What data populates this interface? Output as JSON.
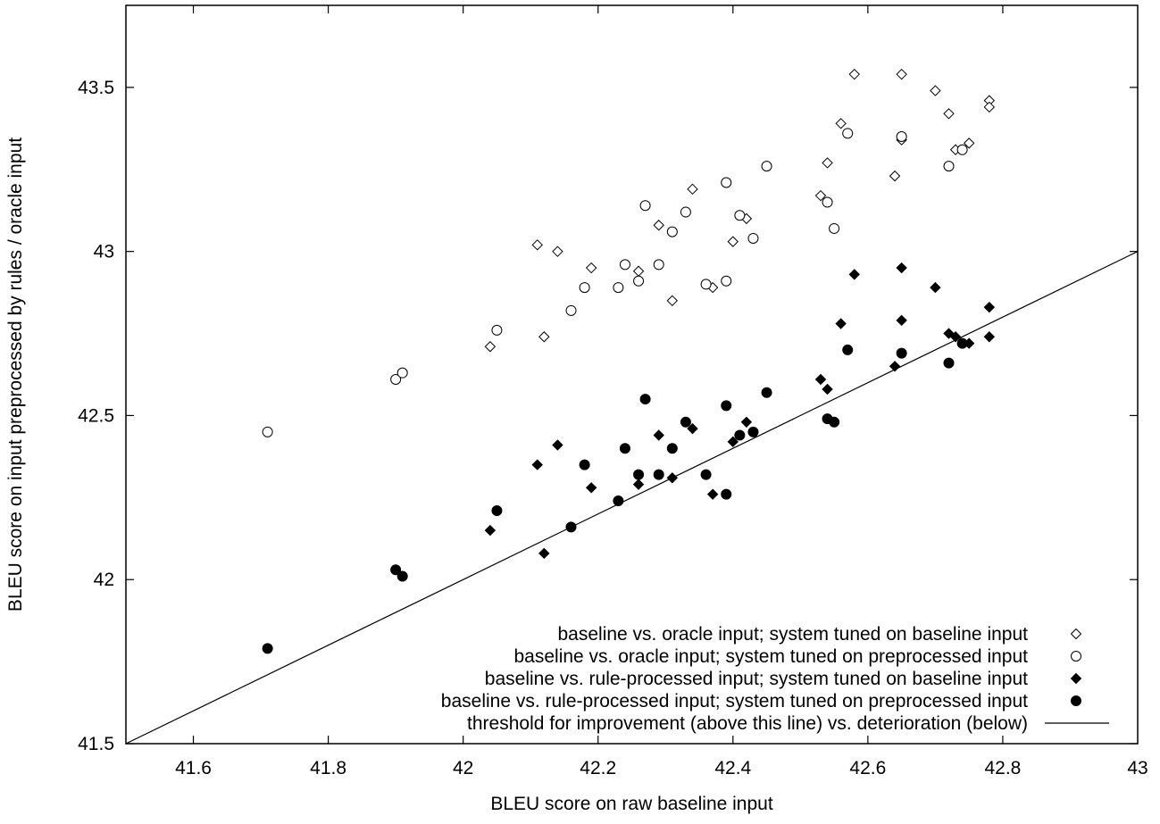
{
  "chart_data": {
    "type": "scatter",
    "title": "",
    "xlabel": "BLEU score on raw baseline input",
    "ylabel": "BLEU score on input preprocessed by rules / oracle input",
    "xlim": [
      41.5,
      43
    ],
    "ylim": [
      41.5,
      43.75
    ],
    "x_ticks": [
      41.6,
      41.8,
      42,
      42.2,
      42.4,
      42.6,
      42.8,
      43
    ],
    "y_ticks": [
      41.5,
      42,
      42.5,
      43,
      43.5
    ],
    "x_tick_labels": [
      "41.6",
      "41.8",
      "42",
      "42.2",
      "42.4",
      "42.6",
      "42.8",
      "43"
    ],
    "y_tick_labels": [
      "41.5",
      "42",
      "42.5",
      "43",
      "43.5"
    ],
    "grid": false,
    "legend_position": "bottom-right",
    "series": [
      {
        "name": "baseline vs. oracle input; system tuned on baseline input",
        "marker": "open-diamond",
        "points": [
          [
            42.04,
            42.71
          ],
          [
            42.11,
            43.02
          ],
          [
            42.12,
            42.74
          ],
          [
            42.14,
            43.0
          ],
          [
            42.19,
            42.95
          ],
          [
            42.26,
            42.94
          ],
          [
            42.29,
            43.08
          ],
          [
            42.31,
            42.85
          ],
          [
            42.34,
            43.19
          ],
          [
            42.37,
            42.89
          ],
          [
            42.4,
            43.03
          ],
          [
            42.42,
            43.1
          ],
          [
            42.53,
            43.17
          ],
          [
            42.54,
            43.27
          ],
          [
            42.56,
            43.39
          ],
          [
            42.58,
            43.54
          ],
          [
            42.64,
            43.23
          ],
          [
            42.65,
            43.54
          ],
          [
            42.65,
            43.34
          ],
          [
            42.7,
            43.49
          ],
          [
            42.72,
            43.42
          ],
          [
            42.73,
            43.31
          ],
          [
            42.75,
            43.33
          ],
          [
            42.78,
            43.46
          ],
          [
            42.78,
            43.44
          ]
        ]
      },
      {
        "name": "baseline vs. oracle input; system tuned on preprocessed input",
        "marker": "open-circle",
        "points": [
          [
            41.71,
            42.45
          ],
          [
            41.9,
            42.61
          ],
          [
            41.91,
            42.63
          ],
          [
            42.05,
            42.76
          ],
          [
            42.16,
            42.82
          ],
          [
            42.18,
            42.89
          ],
          [
            42.23,
            42.89
          ],
          [
            42.24,
            42.96
          ],
          [
            42.26,
            42.91
          ],
          [
            42.27,
            43.14
          ],
          [
            42.29,
            42.96
          ],
          [
            42.31,
            43.06
          ],
          [
            42.33,
            43.12
          ],
          [
            42.36,
            42.9
          ],
          [
            42.39,
            42.91
          ],
          [
            42.39,
            43.21
          ],
          [
            42.41,
            43.11
          ],
          [
            42.43,
            43.04
          ],
          [
            42.45,
            43.26
          ],
          [
            42.54,
            43.15
          ],
          [
            42.55,
            43.07
          ],
          [
            42.57,
            43.36
          ],
          [
            42.65,
            43.35
          ],
          [
            42.72,
            43.26
          ],
          [
            42.74,
            43.31
          ]
        ]
      },
      {
        "name": "baseline vs. rule-processed input; system tuned on baseline input",
        "marker": "filled-diamond",
        "points": [
          [
            42.04,
            42.15
          ],
          [
            42.11,
            42.35
          ],
          [
            42.12,
            42.08
          ],
          [
            42.14,
            42.41
          ],
          [
            42.19,
            42.28
          ],
          [
            42.26,
            42.29
          ],
          [
            42.29,
            42.44
          ],
          [
            42.31,
            42.31
          ],
          [
            42.34,
            42.46
          ],
          [
            42.37,
            42.26
          ],
          [
            42.4,
            42.42
          ],
          [
            42.42,
            42.48
          ],
          [
            42.53,
            42.61
          ],
          [
            42.54,
            42.58
          ],
          [
            42.56,
            42.78
          ],
          [
            42.58,
            42.93
          ],
          [
            42.64,
            42.65
          ],
          [
            42.65,
            42.95
          ],
          [
            42.65,
            42.79
          ],
          [
            42.7,
            42.89
          ],
          [
            42.72,
            42.75
          ],
          [
            42.73,
            42.74
          ],
          [
            42.75,
            42.72
          ],
          [
            42.78,
            42.83
          ],
          [
            42.78,
            42.74
          ]
        ]
      },
      {
        "name": "baseline vs. rule-processed input; system tuned on preprocessed input",
        "marker": "filled-circle",
        "points": [
          [
            41.71,
            41.79
          ],
          [
            41.9,
            42.03
          ],
          [
            41.91,
            42.01
          ],
          [
            42.05,
            42.21
          ],
          [
            42.16,
            42.16
          ],
          [
            42.18,
            42.35
          ],
          [
            42.23,
            42.24
          ],
          [
            42.24,
            42.4
          ],
          [
            42.26,
            42.32
          ],
          [
            42.27,
            42.55
          ],
          [
            42.29,
            42.32
          ],
          [
            42.31,
            42.4
          ],
          [
            42.33,
            42.48
          ],
          [
            42.36,
            42.32
          ],
          [
            42.39,
            42.26
          ],
          [
            42.39,
            42.53
          ],
          [
            42.41,
            42.44
          ],
          [
            42.43,
            42.45
          ],
          [
            42.45,
            42.57
          ],
          [
            42.54,
            42.49
          ],
          [
            42.55,
            42.48
          ],
          [
            42.57,
            42.7
          ],
          [
            42.65,
            42.69
          ],
          [
            42.72,
            42.66
          ],
          [
            42.74,
            42.72
          ]
        ]
      },
      {
        "name": "threshold for improvement (above this line) vs. deterioration (below)",
        "marker": "line",
        "points": [
          [
            41.5,
            41.5
          ],
          [
            43,
            43
          ]
        ]
      }
    ]
  }
}
